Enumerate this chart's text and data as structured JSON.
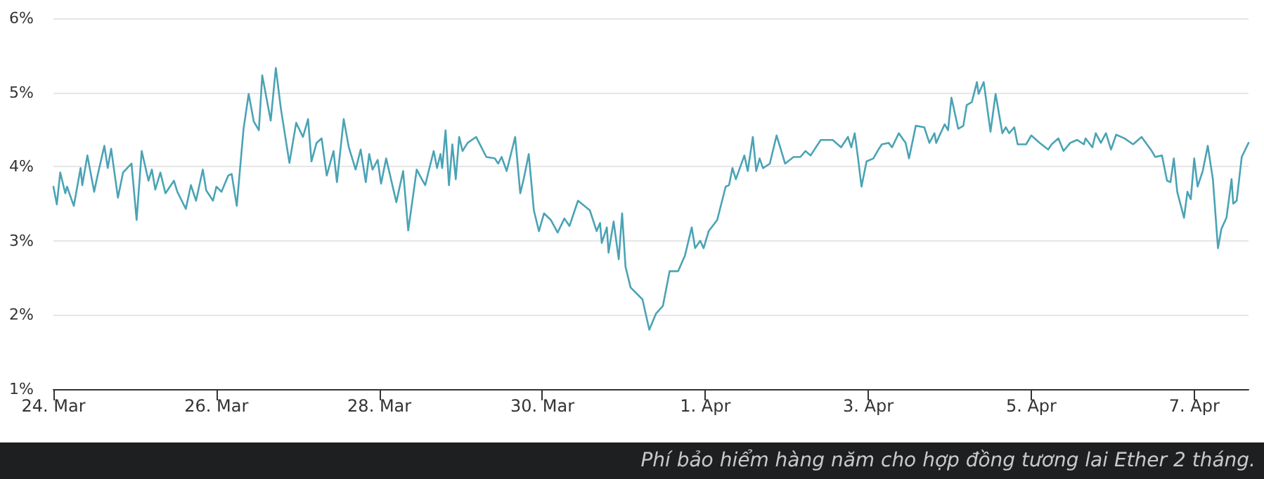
{
  "chart_data": {
    "type": "line",
    "annotations": [
      "Phí bảo hiểm hàng năm cho hợp đồng tương lai Ether 2 tháng."
    ],
    "x": [
      "--03-24T00:00",
      "--03-24T01:00",
      "--03-24T02:00",
      "--03-24T03:30",
      "--03-24T04:00",
      "--03-24T06:00",
      "--03-24T08:00",
      "--03-24T08:30",
      "--03-24T10:00",
      "--03-24T12:00",
      "--03-24T13:00",
      "--03-24T15:00",
      "--03-24T16:00",
      "--03-24T17:00",
      "--03-24T19:00",
      "--03-24T20:30",
      "--03-24T23:00",
      "--03-25T00:30",
      "--03-25T02:00",
      "--03-25T04:00",
      "--03-25T05:00",
      "--03-25T06:00",
      "--03-25T07:30",
      "--03-25T09:00",
      "--03-25T11:30",
      "--03-25T12:30",
      "--03-25T15:00",
      "--03-25T16:30",
      "--03-25T18:00",
      "--03-25T20:00",
      "--03-25T21:00",
      "--03-25T23:00",
      "--03-26T00:00",
      "--03-26T01:30",
      "--03-26T03:30",
      "--03-26T04:30",
      "--03-26T06:00",
      "--03-26T08:00",
      "--03-26T09:30",
      "--03-26T11:00",
      "--03-26T12:30",
      "--03-26T13:30",
      "--03-26T16:00",
      "--03-26T17:30",
      "--03-26T19:00",
      "--03-26T21:30",
      "--03-26T23:30",
      "--03-27T01:30",
      "--03-27T03:00",
      "--03-27T04:00",
      "--03-27T05:30",
      "--03-27T07:00",
      "--03-27T08:30",
      "--03-27T10:30",
      "--03-27T11:30",
      "--03-27T13:30",
      "--03-27T15:00",
      "--03-27T17:00",
      "--03-27T18:30",
      "--03-27T20:00",
      "--03-27T21:00",
      "--03-27T22:00",
      "--03-27T23:30",
      "--03-28T00:30",
      "--03-28T02:00",
      "--03-28T05:00",
      "--03-28T07:00",
      "--03-28T08:30",
      "--03-28T11:00",
      "--03-28T12:30",
      "--03-28T13:30",
      "--03-28T16:00",
      "--03-28T17:00",
      "--03-28T18:00",
      "--03-28T18:30",
      "--03-28T19:30",
      "--03-28T20:30",
      "--03-28T21:30",
      "--03-28T22:30",
      "--03-28T23:30",
      "--03-29T00:30",
      "--03-29T02:00",
      "--03-29T04:30",
      "--03-29T07:30",
      "--03-29T10:00",
      "--03-29T11:00",
      "--03-29T12:00",
      "--03-29T13:30",
      "--03-29T16:00",
      "--03-29T17:30",
      "--03-29T18:30",
      "--03-29T20:00",
      "--03-29T21:30",
      "--03-29T23:00",
      "--03-30T00:30",
      "--03-30T02:30",
      "--03-30T04:30",
      "--03-30T06:30",
      "--03-30T08:00",
      "--03-30T10:30",
      "--03-30T14:00",
      "--03-30T16:00",
      "--03-30T17:00",
      "--03-30T17:30",
      "--03-30T19:00",
      "--03-30T19:30",
      "--03-30T21:00",
      "--03-30T22:30",
      "--03-30T23:30",
      "--03-31T00:30",
      "--03-31T02:00",
      "--03-31T05:30",
      "--03-31T07:30",
      "--03-31T09:30",
      "--03-31T11:30",
      "--03-31T13:30",
      "--03-31T16:00",
      "--03-31T18:00",
      "--03-31T20:00",
      "--03-31T21:00",
      "--03-31T22:30",
      "--03-31T23:30",
      "--04-01T01:00",
      "--04-01T03:30",
      "--04-01T06:00",
      "--04-01T07:00",
      "--04-01T08:00",
      "--04-01T09:00",
      "--04-01T11:30",
      "--04-01T12:30",
      "--04-01T14:00",
      "--04-01T15:00",
      "--04-01T16:00",
      "--04-01T17:00",
      "--04-01T19:00",
      "--04-01T21:00",
      "--04-01T23:30",
      "--04-02T02:00",
      "--04-02T04:00",
      "--04-02T05:30",
      "--04-02T07:00",
      "--04-02T10:00",
      "--04-02T13:30",
      "--04-02T16:00",
      "--04-02T18:00",
      "--04-02T19:00",
      "--04-02T20:00",
      "--04-02T21:00",
      "--04-02T22:00",
      "--04-02T23:30",
      "--04-03T01:30",
      "--04-03T03:00",
      "--04-03T04:00",
      "--04-03T06:00",
      "--04-03T07:00",
      "--04-03T09:00",
      "--04-03T11:00",
      "--04-03T12:00",
      "--04-03T14:00",
      "--04-03T16:30",
      "--04-03T18:00",
      "--04-03T19:30",
      "--04-03T20:00",
      "--04-03T22:30",
      "--04-03T23:30",
      "--04-04T00:30",
      "--04-04T02:30",
      "--04-04T04:00",
      "--04-04T05:00",
      "--04-04T06:30",
      "--04-04T08:00",
      "--04-04T08:30",
      "--04-04T10:00",
      "--04-04T12:00",
      "--04-04T13:30",
      "--04-04T15:30",
      "--04-04T16:30",
      "--04-04T17:30",
      "--04-04T19:00",
      "--04-04T20:00",
      "--04-04T22:30",
      "--04-05T00:00",
      "--04-05T02:30",
      "--04-05T05:00",
      "--04-05T06:00",
      "--04-05T08:00",
      "--04-05T09:30",
      "--04-05T11:30",
      "--04-05T13:30",
      "--04-05T15:30",
      "--04-05T16:00",
      "--04-05T18:00",
      "--04-05T19:00",
      "--04-05T20:30",
      "--04-05T22:00",
      "--04-05T23:30",
      "--04-06T01:00",
      "--04-06T03:30",
      "--04-06T06:00",
      "--04-06T08:30",
      "--04-06T11:30",
      "--04-06T12:30",
      "--04-06T14:30",
      "--04-06T16:00",
      "--04-06T17:00",
      "--04-06T18:00",
      "--04-06T19:00",
      "--04-06T21:00",
      "--04-06T22:00",
      "--04-06T23:00",
      "--04-07T00:00",
      "--04-07T01:00",
      "--04-07T02:30",
      "--04-07T04:00",
      "--04-07T05:30",
      "--04-07T07:00",
      "--04-07T08:00",
      "--04-07T09:30",
      "--04-07T11:00",
      "--04-07T11:30",
      "--04-07T12:30",
      "--04-07T14:00",
      "--04-07T16:00"
    ],
    "series": [
      {
        "color": "#4aa3b5",
        "values": [
          3.73,
          3.49,
          3.92,
          3.64,
          3.73,
          3.47,
          3.98,
          3.75,
          4.15,
          3.66,
          3.88,
          4.28,
          3.98,
          4.24,
          3.58,
          3.92,
          4.04,
          3.28,
          4.21,
          3.81,
          3.96,
          3.69,
          3.92,
          3.64,
          3.81,
          3.66,
          3.43,
          3.75,
          3.54,
          3.96,
          3.68,
          3.54,
          3.73,
          3.66,
          3.88,
          3.9,
          3.47,
          4.51,
          4.98,
          4.61,
          4.49,
          5.23,
          4.62,
          5.33,
          4.78,
          4.05,
          4.59,
          4.4,
          4.64,
          4.07,
          4.32,
          4.38,
          3.88,
          4.21,
          3.79,
          4.64,
          4.26,
          3.96,
          4.23,
          3.79,
          4.17,
          3.96,
          4.09,
          3.77,
          4.11,
          3.52,
          3.94,
          3.14,
          3.96,
          3.83,
          3.75,
          4.21,
          3.98,
          4.17,
          3.98,
          4.49,
          3.75,
          4.3,
          3.83,
          4.4,
          4.21,
          4.32,
          4.4,
          4.13,
          4.11,
          4.04,
          4.13,
          3.94,
          4.4,
          3.64,
          3.83,
          4.17,
          3.41,
          3.13,
          3.37,
          3.28,
          3.11,
          3.3,
          3.2,
          3.54,
          3.41,
          3.13,
          3.24,
          2.97,
          3.18,
          2.84,
          3.26,
          2.75,
          3.37,
          2.65,
          2.37,
          2.21,
          1.8,
          2.02,
          2.12,
          2.59,
          2.59,
          2.8,
          3.18,
          2.9,
          3.0,
          2.9,
          3.13,
          3.28,
          3.73,
          3.75,
          3.98,
          3.83,
          4.15,
          3.94,
          4.4,
          3.94,
          4.11,
          3.98,
          4.04,
          4.42,
          4.04,
          4.13,
          4.13,
          4.21,
          4.15,
          4.36,
          4.36,
          4.26,
          4.4,
          4.26,
          4.45,
          4.11,
          3.73,
          4.07,
          4.11,
          4.23,
          4.3,
          4.32,
          4.26,
          4.45,
          4.32,
          4.11,
          4.55,
          4.53,
          4.32,
          4.45,
          4.32,
          4.57,
          4.49,
          4.93,
          4.51,
          4.55,
          4.83,
          4.87,
          5.14,
          4.98,
          5.14,
          4.47,
          4.98,
          4.45,
          4.53,
          4.45,
          4.53,
          4.3,
          4.3,
          4.42,
          4.32,
          4.23,
          4.3,
          4.38,
          4.21,
          4.32,
          4.36,
          4.3,
          4.38,
          4.26,
          4.45,
          4.32,
          4.45,
          4.23,
          4.43,
          4.38,
          4.3,
          4.4,
          4.21,
          4.13,
          4.15,
          3.81,
          3.79,
          4.11,
          3.66,
          3.31,
          3.66,
          3.56,
          4.11,
          3.73,
          3.94,
          4.28,
          3.83,
          2.9,
          3.16,
          3.31,
          3.83,
          3.5,
          3.54,
          4.13,
          4.32
        ]
      }
    ],
    "xlim": [
      "--03-24",
      "--04-07T16:00"
    ],
    "xticks": [
      {
        "value": "--03-24",
        "label": "24. Mar"
      },
      {
        "value": "--03-26",
        "label": "26. Mar"
      },
      {
        "value": "--03-28",
        "label": "28. Mar"
      },
      {
        "value": "--03-30",
        "label": "30. Mar"
      },
      {
        "value": "--04-01",
        "label": "1. Apr"
      },
      {
        "value": "--04-03",
        "label": "3. Apr"
      },
      {
        "value": "--04-05",
        "label": "5. Apr"
      },
      {
        "value": "--04-07",
        "label": "7. Apr"
      }
    ],
    "ylim": [
      1,
      6
    ],
    "yticks": [
      {
        "value": 1,
        "label": "1%"
      },
      {
        "value": 2,
        "label": "2%"
      },
      {
        "value": 3,
        "label": "3%"
      },
      {
        "value": 4,
        "label": "4%"
      },
      {
        "value": 5,
        "label": "5%"
      },
      {
        "value": 6,
        "label": "6%"
      }
    ],
    "grid": "y",
    "marker": "none",
    "line_style": "solid"
  }
}
